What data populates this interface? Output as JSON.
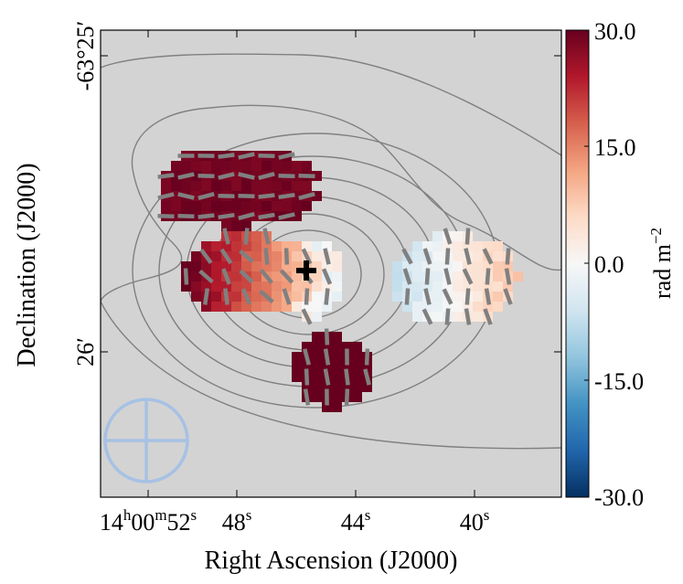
{
  "chart_data": {
    "type": "heatmap",
    "title": "",
    "xlabel": "Right Ascension (J2000)",
    "ylabel": "Declination (J2000)",
    "x_ticks": [
      {
        "label": "14h00m52s",
        "value": 52
      },
      {
        "label": "48s",
        "value": 48
      },
      {
        "label": "44s",
        "value": 44
      },
      {
        "label": "40s",
        "value": 40
      }
    ],
    "x_tick_parts": [
      {
        "main1": "14",
        "sup1": "h",
        "main2": "00",
        "sup2": "m",
        "main3": "52",
        "sup3": "s"
      },
      {
        "main1": "48",
        "sup1": "s"
      },
      {
        "main1": "44",
        "sup1": "s"
      },
      {
        "main1": "40",
        "sup1": "s"
      }
    ],
    "y_ticks": [
      {
        "label": "-63°25′",
        "value": 25
      },
      {
        "label": "26′",
        "value": 26
      }
    ],
    "colorbar": {
      "label": "rad m⁻²",
      "label_main": "rad m",
      "label_sup": "−2",
      "range": [
        -30.0,
        30.0
      ],
      "ticks": [
        "30.0",
        "15.0",
        "0.0",
        "-15.0",
        "-30.0"
      ],
      "tick_values": [
        30,
        15,
        0,
        -15,
        -30
      ],
      "colormap": "RdBu_r"
    },
    "features": {
      "core_marker": "cross",
      "contours": "total intensity",
      "vectors": "polarization angle",
      "beam": "circle-with-cross"
    }
  },
  "colors": {
    "background": "#d3d3d3",
    "contour": "#808080",
    "vector": "#808080",
    "beam": "#a6c1e4",
    "marker": "#000000"
  }
}
